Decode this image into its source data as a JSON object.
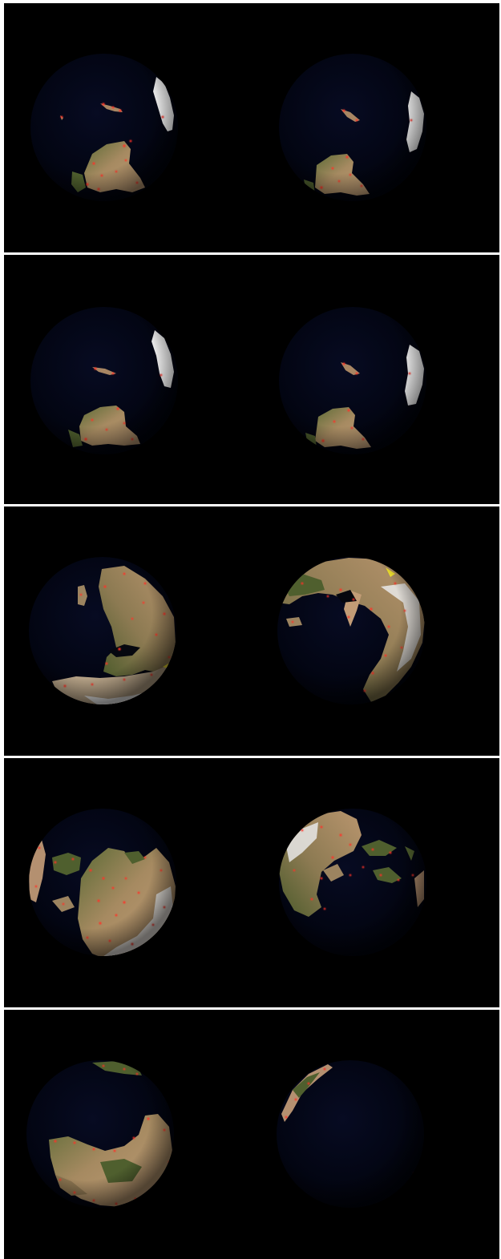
{
  "image": {
    "description_domain": "Natural-Image",
    "background_color": "#000000",
    "separator_color": "#ffffff",
    "globe_ocean_color": "#020514",
    "land_color": "#b7926c",
    "land_vegetation_color": "#4f5f2e",
    "ice_color": "#f4f4f4",
    "hotspot_color": "#ff3326",
    "highlight_color": "#f0e030"
  },
  "frames": [
    {
      "id": "frame-1",
      "globes": [
        "globe-1a",
        "globe-1b"
      ]
    },
    {
      "id": "frame-2",
      "globes": [
        "globe-2a",
        "globe-2b"
      ]
    },
    {
      "id": "frame-3",
      "globes": [
        "globe-3a",
        "globe-3b"
      ]
    },
    {
      "id": "frame-4",
      "globes": [
        "globe-4a",
        "globe-4b"
      ]
    },
    {
      "id": "frame-5",
      "globes": [
        "globe-5a",
        "globe-5b"
      ]
    }
  ]
}
